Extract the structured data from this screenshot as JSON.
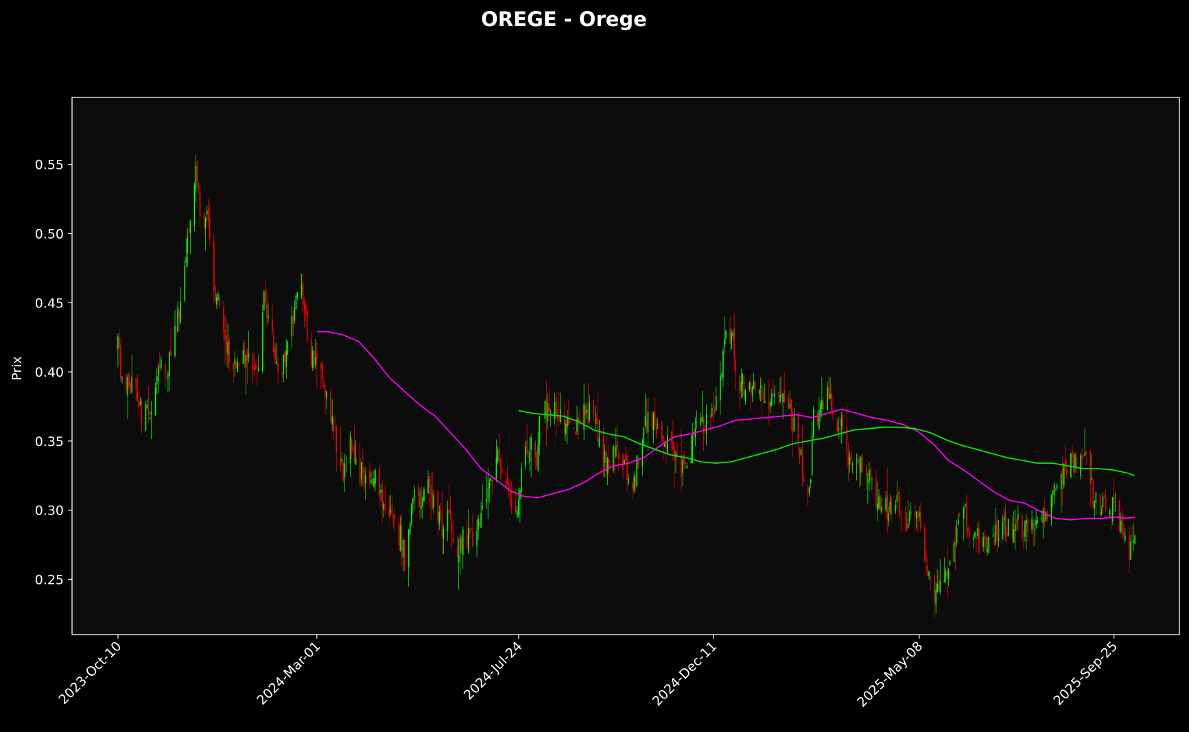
{
  "chart_data": {
    "type": "candlestick",
    "title": "OREGE - Orege",
    "ylabel": "Prix",
    "xlabel": "",
    "ylim": [
      0.21,
      0.5985
    ],
    "yticks": [
      0.25,
      0.3,
      0.35,
      0.4,
      0.45,
      0.5,
      0.55
    ],
    "ytick_labels": [
      "0.25",
      "0.30",
      "0.35",
      "0.40",
      "0.45",
      "0.50",
      "0.55"
    ],
    "xlim": [
      "2023-09-07",
      "2025-11-11"
    ],
    "xticks": [
      "2023-10-10",
      "2024-03-01",
      "2024-07-24",
      "2024-12-11",
      "2025-05-08",
      "2025-09-25"
    ],
    "xtick_labels": [
      "2023-Oct-10",
      "2024-Mar-01",
      "2024-Jul-24",
      "2024-Dec-11",
      "2025-May-08",
      "2025-Sep-25"
    ],
    "grid": false,
    "legend": "none",
    "colors": {
      "background": "#000000",
      "plot_background": "#0c0c0c",
      "frame": "#ffffff",
      "up": "#00ff00",
      "down": "#ff0000",
      "ma_short": "#ff00ff",
      "ma_long": "#00ee00"
    },
    "close_path": [
      [
        "2023-10-10",
        0.42
      ],
      [
        "2023-10-14",
        0.385
      ],
      [
        "2023-10-20",
        0.39
      ],
      [
        "2023-10-27",
        0.37
      ],
      [
        "2023-11-03",
        0.37
      ],
      [
        "2023-11-10",
        0.41
      ],
      [
        "2023-11-15",
        0.4
      ],
      [
        "2023-11-22",
        0.44
      ],
      [
        "2023-11-27",
        0.48
      ],
      [
        "2023-12-02",
        0.51
      ],
      [
        "2023-12-05",
        0.55
      ],
      [
        "2023-12-09",
        0.5
      ],
      [
        "2023-12-13",
        0.51
      ],
      [
        "2023-12-18",
        0.46
      ],
      [
        "2023-12-23",
        0.44
      ],
      [
        "2023-12-29",
        0.41
      ],
      [
        "2024-01-05",
        0.405
      ],
      [
        "2024-01-12",
        0.41
      ],
      [
        "2024-01-19",
        0.4
      ],
      [
        "2024-01-23",
        0.46
      ],
      [
        "2024-01-26",
        0.44
      ],
      [
        "2024-02-01",
        0.41
      ],
      [
        "2024-02-05",
        0.4
      ],
      [
        "2024-02-10",
        0.43
      ],
      [
        "2024-02-14",
        0.44
      ],
      [
        "2024-02-18",
        0.47
      ],
      [
        "2024-02-21",
        0.44
      ],
      [
        "2024-02-25",
        0.41
      ],
      [
        "2024-03-01",
        0.405
      ],
      [
        "2024-03-05",
        0.39
      ],
      [
        "2024-03-10",
        0.37
      ],
      [
        "2024-03-15",
        0.35
      ],
      [
        "2024-03-20",
        0.33
      ],
      [
        "2024-03-24",
        0.35
      ],
      [
        "2024-03-31",
        0.33
      ],
      [
        "2024-04-05",
        0.32
      ],
      [
        "2024-04-12",
        0.32
      ],
      [
        "2024-04-18",
        0.3
      ],
      [
        "2024-04-24",
        0.29
      ],
      [
        "2024-04-30",
        0.28
      ],
      [
        "2024-05-04",
        0.26
      ],
      [
        "2024-05-08",
        0.3
      ],
      [
        "2024-05-11",
        0.33
      ],
      [
        "2024-05-15",
        0.3
      ],
      [
        "2024-05-20",
        0.32
      ],
      [
        "2024-05-25",
        0.3
      ],
      [
        "2024-05-30",
        0.29
      ],
      [
        "2024-06-04",
        0.3
      ],
      [
        "2024-06-09",
        0.27
      ],
      [
        "2024-06-14",
        0.28
      ],
      [
        "2024-06-19",
        0.28
      ],
      [
        "2024-06-24",
        0.285
      ],
      [
        "2024-06-30",
        0.3
      ],
      [
        "2024-07-05",
        0.32
      ],
      [
        "2024-07-09",
        0.34
      ],
      [
        "2024-07-14",
        0.33
      ],
      [
        "2024-07-19",
        0.3
      ],
      [
        "2024-07-24",
        0.31
      ],
      [
        "2024-07-28",
        0.34
      ],
      [
        "2024-08-02",
        0.345
      ],
      [
        "2024-08-06",
        0.34
      ],
      [
        "2024-08-10",
        0.38
      ],
      [
        "2024-08-15",
        0.37
      ],
      [
        "2024-08-20",
        0.37
      ],
      [
        "2024-08-25",
        0.365
      ],
      [
        "2024-08-30",
        0.365
      ],
      [
        "2024-09-05",
        0.36
      ],
      [
        "2024-09-10",
        0.37
      ],
      [
        "2024-09-15",
        0.37
      ],
      [
        "2024-09-20",
        0.35
      ],
      [
        "2024-09-25",
        0.33
      ],
      [
        "2024-09-30",
        0.34
      ],
      [
        "2024-10-05",
        0.335
      ],
      [
        "2024-10-10",
        0.33
      ],
      [
        "2024-10-15",
        0.32
      ],
      [
        "2024-10-20",
        0.35
      ],
      [
        "2024-10-25",
        0.37
      ],
      [
        "2024-10-30",
        0.36
      ],
      [
        "2024-11-04",
        0.35
      ],
      [
        "2024-11-09",
        0.35
      ],
      [
        "2024-11-14",
        0.34
      ],
      [
        "2024-11-19",
        0.33
      ],
      [
        "2024-11-24",
        0.34
      ],
      [
        "2024-11-29",
        0.36
      ],
      [
        "2024-12-04",
        0.36
      ],
      [
        "2024-12-09",
        0.37
      ],
      [
        "2024-12-13",
        0.375
      ],
      [
        "2024-12-18",
        0.41
      ],
      [
        "2024-12-21",
        0.43
      ],
      [
        "2024-12-25",
        0.42
      ],
      [
        "2024-12-30",
        0.39
      ],
      [
        "2025-01-04",
        0.39
      ],
      [
        "2025-01-09",
        0.39
      ],
      [
        "2025-01-14",
        0.385
      ],
      [
        "2025-01-19",
        0.38
      ],
      [
        "2025-01-24",
        0.39
      ],
      [
        "2025-01-29",
        0.385
      ],
      [
        "2025-02-03",
        0.37
      ],
      [
        "2025-02-08",
        0.36
      ],
      [
        "2025-02-13",
        0.33
      ],
      [
        "2025-02-18",
        0.31
      ],
      [
        "2025-02-21",
        0.37
      ],
      [
        "2025-02-26",
        0.37
      ],
      [
        "2025-03-03",
        0.38
      ],
      [
        "2025-03-08",
        0.37
      ],
      [
        "2025-03-13",
        0.36
      ],
      [
        "2025-03-18",
        0.34
      ],
      [
        "2025-03-23",
        0.33
      ],
      [
        "2025-03-28",
        0.33
      ],
      [
        "2025-04-02",
        0.32
      ],
      [
        "2025-04-07",
        0.31
      ],
      [
        "2025-04-12",
        0.3
      ],
      [
        "2025-04-17",
        0.3
      ],
      [
        "2025-04-22",
        0.31
      ],
      [
        "2025-04-27",
        0.29
      ],
      [
        "2025-05-02",
        0.3
      ],
      [
        "2025-05-07",
        0.3
      ],
      [
        "2025-05-11",
        0.27
      ],
      [
        "2025-05-15",
        0.25
      ],
      [
        "2025-05-19",
        0.24
      ],
      [
        "2025-05-24",
        0.25
      ],
      [
        "2025-05-29",
        0.26
      ],
      [
        "2025-06-03",
        0.28
      ],
      [
        "2025-06-08",
        0.3
      ],
      [
        "2025-06-13",
        0.29
      ],
      [
        "2025-06-18",
        0.28
      ],
      [
        "2025-06-23",
        0.275
      ],
      [
        "2025-06-28",
        0.285
      ],
      [
        "2025-07-03",
        0.28
      ],
      [
        "2025-07-08",
        0.29
      ],
      [
        "2025-07-13",
        0.285
      ],
      [
        "2025-07-18",
        0.29
      ],
      [
        "2025-07-23",
        0.285
      ],
      [
        "2025-07-28",
        0.29
      ],
      [
        "2025-08-02",
        0.29
      ],
      [
        "2025-08-07",
        0.3
      ],
      [
        "2025-08-12",
        0.31
      ],
      [
        "2025-08-17",
        0.32
      ],
      [
        "2025-08-22",
        0.33
      ],
      [
        "2025-08-27",
        0.335
      ],
      [
        "2025-09-01",
        0.34
      ],
      [
        "2025-09-05",
        0.335
      ],
      [
        "2025-09-10",
        0.31
      ],
      [
        "2025-09-15",
        0.3
      ],
      [
        "2025-09-20",
        0.305
      ],
      [
        "2025-09-25",
        0.3
      ],
      [
        "2025-09-29",
        0.29
      ],
      [
        "2025-10-03",
        0.28
      ],
      [
        "2025-10-06",
        0.27
      ],
      [
        "2025-10-10",
        0.275
      ]
    ],
    "series": [
      {
        "role": "moving average (short)",
        "color": "#ff00ff",
        "points": [
          [
            "2024-03-01",
            0.429
          ],
          [
            "2024-03-09",
            0.429
          ],
          [
            "2024-03-19",
            0.427
          ],
          [
            "2024-03-31",
            0.422
          ],
          [
            "2024-04-11",
            0.41
          ],
          [
            "2024-04-22",
            0.396
          ],
          [
            "2024-05-03",
            0.386
          ],
          [
            "2024-05-14",
            0.376
          ],
          [
            "2024-05-25",
            0.368
          ],
          [
            "2024-06-05",
            0.356
          ],
          [
            "2024-06-16",
            0.344
          ],
          [
            "2024-06-27",
            0.33
          ],
          [
            "2024-07-08",
            0.322
          ],
          [
            "2024-07-18",
            0.314
          ],
          [
            "2024-07-28",
            0.31
          ],
          [
            "2024-08-07",
            0.309
          ],
          [
            "2024-08-18",
            0.312
          ],
          [
            "2024-08-29",
            0.315
          ],
          [
            "2024-09-09",
            0.32
          ],
          [
            "2024-09-20",
            0.327
          ],
          [
            "2024-09-30",
            0.332
          ],
          [
            "2024-10-11",
            0.334
          ],
          [
            "2024-10-22",
            0.338
          ],
          [
            "2024-11-02",
            0.346
          ],
          [
            "2024-11-13",
            0.353
          ],
          [
            "2024-11-24",
            0.355
          ],
          [
            "2024-12-05",
            0.358
          ],
          [
            "2024-12-16",
            0.361
          ],
          [
            "2024-12-27",
            0.365
          ],
          [
            "2025-01-07",
            0.366
          ],
          [
            "2025-01-18",
            0.367
          ],
          [
            "2025-01-29",
            0.368
          ],
          [
            "2025-02-09",
            0.369
          ],
          [
            "2025-02-20",
            0.367
          ],
          [
            "2025-03-03",
            0.37
          ],
          [
            "2025-03-13",
            0.373
          ],
          [
            "2025-03-24",
            0.37
          ],
          [
            "2025-04-04",
            0.367
          ],
          [
            "2025-04-15",
            0.365
          ],
          [
            "2025-04-26",
            0.362
          ],
          [
            "2025-05-07",
            0.357
          ],
          [
            "2025-05-18",
            0.348
          ],
          [
            "2025-05-29",
            0.336
          ],
          [
            "2025-06-09",
            0.329
          ],
          [
            "2025-06-20",
            0.321
          ],
          [
            "2025-07-01",
            0.313
          ],
          [
            "2025-07-12",
            0.307
          ],
          [
            "2025-07-23",
            0.305
          ],
          [
            "2025-08-03",
            0.299
          ],
          [
            "2025-08-14",
            0.294
          ],
          [
            "2025-08-25",
            0.293
          ],
          [
            "2025-09-05",
            0.294
          ],
          [
            "2025-09-16",
            0.294
          ],
          [
            "2025-09-27",
            0.295
          ],
          [
            "2025-10-04",
            0.294
          ],
          [
            "2025-10-10",
            0.295
          ]
        ]
      },
      {
        "role": "moving average (long)",
        "color": "#00ee00",
        "points": [
          [
            "2024-07-24",
            0.372
          ],
          [
            "2024-08-03",
            0.37
          ],
          [
            "2024-08-14",
            0.369
          ],
          [
            "2024-08-25",
            0.368
          ],
          [
            "2024-09-05",
            0.364
          ],
          [
            "2024-09-16",
            0.358
          ],
          [
            "2024-09-27",
            0.355
          ],
          [
            "2024-10-08",
            0.353
          ],
          [
            "2024-10-19",
            0.348
          ],
          [
            "2024-10-30",
            0.344
          ],
          [
            "2024-11-10",
            0.34
          ],
          [
            "2024-11-21",
            0.338
          ],
          [
            "2024-12-02",
            0.335
          ],
          [
            "2024-12-13",
            0.334
          ],
          [
            "2024-12-24",
            0.335
          ],
          [
            "2025-01-04",
            0.338
          ],
          [
            "2025-01-15",
            0.341
          ],
          [
            "2025-01-26",
            0.344
          ],
          [
            "2025-02-06",
            0.348
          ],
          [
            "2025-02-17",
            0.35
          ],
          [
            "2025-02-28",
            0.352
          ],
          [
            "2025-03-11",
            0.355
          ],
          [
            "2025-03-22",
            0.358
          ],
          [
            "2025-04-02",
            0.359
          ],
          [
            "2025-04-13",
            0.36
          ],
          [
            "2025-04-24",
            0.36
          ],
          [
            "2025-05-05",
            0.359
          ],
          [
            "2025-05-16",
            0.356
          ],
          [
            "2025-05-27",
            0.351
          ],
          [
            "2025-06-07",
            0.347
          ],
          [
            "2025-06-18",
            0.344
          ],
          [
            "2025-06-29",
            0.341
          ],
          [
            "2025-07-10",
            0.338
          ],
          [
            "2025-07-21",
            0.336
          ],
          [
            "2025-08-01",
            0.334
          ],
          [
            "2025-08-12",
            0.334
          ],
          [
            "2025-08-23",
            0.332
          ],
          [
            "2025-09-03",
            0.33
          ],
          [
            "2025-09-14",
            0.33
          ],
          [
            "2025-09-25",
            0.329
          ],
          [
            "2025-10-04",
            0.327
          ],
          [
            "2025-10-10",
            0.325
          ]
        ]
      }
    ]
  }
}
